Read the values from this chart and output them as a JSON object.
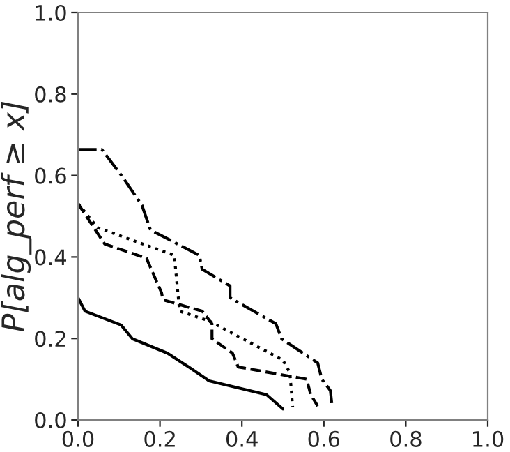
{
  "chart_data": {
    "type": "line",
    "ylabel": "P[alg_perf ≥ x]",
    "xlim": [
      0,
      1
    ],
    "ylim": [
      0,
      1
    ],
    "xticks": [
      {
        "value": 0,
        "label": "0.0"
      },
      0.2,
      0.4,
      0.6,
      0.8,
      {
        "value": 1,
        "label": "1.0"
      }
    ],
    "yticks": [
      {
        "value": 0,
        "label": "0.0"
      },
      0.2,
      0.4,
      0.6,
      0.8,
      {
        "value": 1,
        "label": "1.0"
      }
    ],
    "grid": false,
    "legend": false,
    "marker": "none",
    "series": [
      {
        "color": "#000000",
        "line_style": "solid",
        "x": [
          0,
          0.017,
          0.105,
          0.133,
          0.218,
          0.27,
          0.32,
          0.46,
          0.5
        ],
        "values": [
          0.3,
          0.267,
          0.233,
          0.199,
          0.164,
          0.13,
          0.096,
          0.062,
          0.027
        ]
      },
      {
        "color": "#000000",
        "line_style": "dashdot",
        "x": [
          0,
          0.058,
          0.109,
          0.156,
          0.177,
          0.224,
          0.296,
          0.303,
          0.371,
          0.371,
          0.483,
          0.497,
          0.585,
          0.595,
          0.616,
          0.62
        ],
        "values": [
          0.664,
          0.664,
          0.596,
          0.527,
          0.466,
          0.442,
          0.404,
          0.37,
          0.329,
          0.3,
          0.236,
          0.199,
          0.14,
          0.1,
          0.072,
          0.034
        ]
      },
      {
        "color": "#000000",
        "line_style": "dotted",
        "x": [
          0,
          0.048,
          0.235,
          0.248,
          0.32,
          0.5,
          0.517,
          0.524
        ],
        "values": [
          0.531,
          0.472,
          0.404,
          0.267,
          0.243,
          0.147,
          0.116,
          0.031
        ]
      },
      {
        "color": "#000000",
        "line_style": "dashed",
        "x": [
          0,
          0.065,
          0.167,
          0.204,
          0.207,
          0.303,
          0.327,
          0.327,
          0.377,
          0.391,
          0.558,
          0.568,
          0.585
        ],
        "values": [
          0.531,
          0.432,
          0.397,
          0.312,
          0.295,
          0.267,
          0.236,
          0.199,
          0.164,
          0.13,
          0.1,
          0.062,
          0.034
        ]
      }
    ]
  }
}
